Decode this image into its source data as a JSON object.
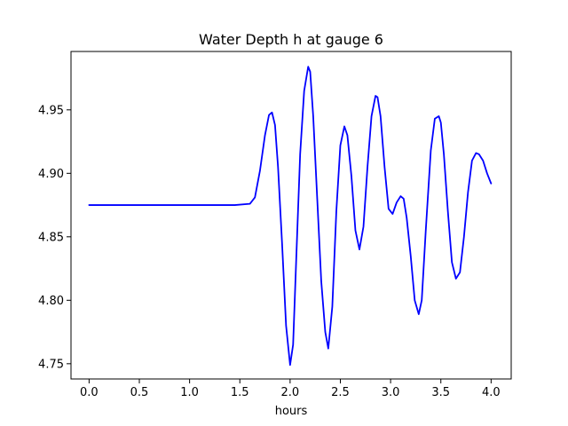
{
  "chart_data": {
    "type": "line",
    "title": "Water Depth h at gauge 6",
    "xlabel": "hours",
    "ylabel": "",
    "xlim": [
      -0.18,
      4.2
    ],
    "ylim": [
      4.738,
      4.996
    ],
    "x_ticks": [
      0.0,
      0.5,
      1.0,
      1.5,
      2.0,
      2.5,
      3.0,
      3.5,
      4.0
    ],
    "x_tick_labels": [
      "0.0",
      "0.5",
      "1.0",
      "1.5",
      "2.0",
      "2.5",
      "3.0",
      "3.5",
      "4.0"
    ],
    "y_ticks": [
      4.75,
      4.8,
      4.85,
      4.9,
      4.95
    ],
    "y_tick_labels": [
      "4.75",
      "4.80",
      "4.85",
      "4.90",
      "4.95"
    ],
    "grid": false,
    "series": [
      {
        "color": "#0000ff",
        "x": [
          0.0,
          0.5,
          1.0,
          1.1,
          1.3,
          1.45,
          1.6,
          1.65,
          1.7,
          1.75,
          1.79,
          1.82,
          1.85,
          1.88,
          1.92,
          1.96,
          2.0,
          2.03,
          2.06,
          2.1,
          2.14,
          2.18,
          2.2,
          2.23,
          2.27,
          2.31,
          2.35,
          2.38,
          2.42,
          2.46,
          2.5,
          2.54,
          2.57,
          2.61,
          2.65,
          2.69,
          2.73,
          2.77,
          2.81,
          2.85,
          2.87,
          2.9,
          2.94,
          2.98,
          3.02,
          3.06,
          3.1,
          3.13,
          3.16,
          3.2,
          3.24,
          3.28,
          3.31,
          3.35,
          3.4,
          3.44,
          3.48,
          3.5,
          3.53,
          3.57,
          3.61,
          3.65,
          3.69,
          3.73,
          3.77,
          3.81,
          3.85,
          3.88,
          3.92,
          3.96,
          4.0
        ],
        "y": [
          4.875,
          4.875,
          4.875,
          4.875,
          4.875,
          4.875,
          4.876,
          4.881,
          4.902,
          4.93,
          4.946,
          4.948,
          4.938,
          4.905,
          4.845,
          4.78,
          4.749,
          4.765,
          4.83,
          4.915,
          4.965,
          4.984,
          4.98,
          4.945,
          4.88,
          4.815,
          4.775,
          4.762,
          4.795,
          4.87,
          4.922,
          4.937,
          4.93,
          4.898,
          4.855,
          4.84,
          4.858,
          4.905,
          4.945,
          4.961,
          4.96,
          4.945,
          4.905,
          4.872,
          4.868,
          4.877,
          4.882,
          4.88,
          4.865,
          4.835,
          4.8,
          4.789,
          4.8,
          4.855,
          4.918,
          4.943,
          4.945,
          4.94,
          4.915,
          4.87,
          4.83,
          4.817,
          4.822,
          4.85,
          4.885,
          4.91,
          4.916,
          4.915,
          4.91,
          4.9,
          4.892
        ]
      }
    ]
  }
}
